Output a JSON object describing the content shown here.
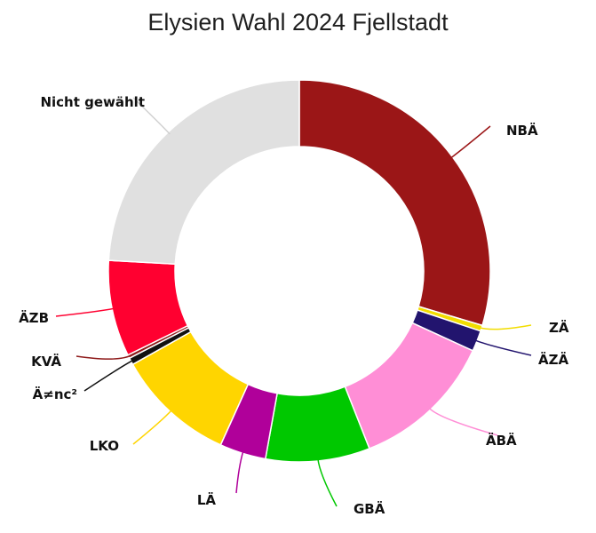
{
  "chart_data": {
    "type": "pie",
    "title": "Elysien Wahl 2024 Fjellstadt",
    "slices": [
      {
        "label": "NBÄ",
        "value": 30.2,
        "color": "#9B1617"
      },
      {
        "label": "ZÄ",
        "value": 0.5,
        "color": "#F2DD00"
      },
      {
        "label": "ÄZÄ",
        "value": 1.8,
        "color": "#22146E"
      },
      {
        "label": "ÄBÄ",
        "value": 12.4,
        "color": "#FF8ED6"
      },
      {
        "label": "GBÄ",
        "value": 9.0,
        "color": "#00C800"
      },
      {
        "label": "LÄ",
        "value": 4.0,
        "color": "#B0009A"
      },
      {
        "label": "LKO",
        "value": 10.3,
        "color": "#FFD500"
      },
      {
        "label": "Ä≠nc²",
        "value": 0.6,
        "color": "#111111"
      },
      {
        "label": "KVÄ",
        "value": 0.3,
        "color": "#8E1A1A"
      },
      {
        "label": "ÄZB",
        "value": 8.3,
        "color": "#FF0030"
      },
      {
        "label": "Nicht gewählt",
        "value": 24.6,
        "color": "#E0E0E0"
      }
    ]
  }
}
